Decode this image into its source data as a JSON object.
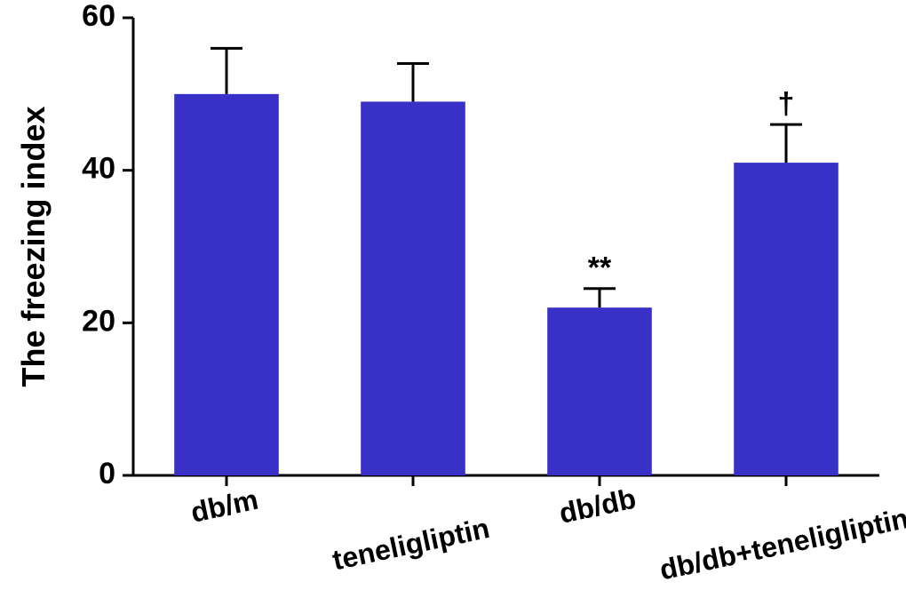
{
  "chart": {
    "type": "bar",
    "background_color": "#ffffff",
    "ylabel": "The freezing index",
    "label_fontsize": 36,
    "tick_fontsize": 34,
    "category_fontsize": 32,
    "ylim": [
      0,
      60
    ],
    "yticks": [
      0,
      20,
      40,
      60
    ],
    "axis_color": "#000000",
    "axis_width": 3,
    "categories": [
      "db/m",
      "teneligliptin",
      "db/db",
      "db/db+teneligliptin"
    ],
    "values": [
      50,
      49,
      22,
      41
    ],
    "errors": [
      6,
      5,
      2.5,
      5
    ],
    "bar_colors": [
      "#3830c7",
      "#3830c7",
      "#3830c7",
      "#3830c7"
    ],
    "bar_width": 0.56,
    "annotations": [
      {
        "index": 2,
        "text": "**"
      },
      {
        "index": 3,
        "text": "†"
      }
    ],
    "annotation_fontsize": 34
  }
}
